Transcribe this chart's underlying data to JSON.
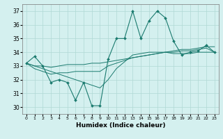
{
  "xlabel": "Humidex (Indice chaleur)",
  "ylabel": "",
  "background_color": "#d4f0ef",
  "grid_color": "#b0d8d4",
  "line_color": "#1a7a6e",
  "xlim": [
    -0.5,
    23.5
  ],
  "ylim": [
    29.5,
    37.5
  ],
  "yticks": [
    30,
    31,
    32,
    33,
    34,
    35,
    36,
    37
  ],
  "xticks": [
    0,
    1,
    2,
    3,
    4,
    5,
    6,
    7,
    8,
    9,
    10,
    11,
    12,
    13,
    14,
    15,
    16,
    17,
    18,
    19,
    20,
    21,
    22,
    23
  ],
  "series": [
    [
      33.2,
      33.7,
      33.0,
      31.8,
      32.0,
      31.8,
      30.5,
      31.8,
      30.1,
      30.1,
      33.5,
      35.0,
      35.0,
      37.0,
      35.0,
      36.3,
      37.0,
      36.5,
      34.8,
      33.8,
      34.0,
      34.1,
      34.5,
      34.0
    ],
    [
      33.2,
      33.0,
      33.0,
      32.9,
      33.0,
      33.1,
      33.1,
      33.1,
      33.2,
      33.2,
      33.3,
      33.4,
      33.5,
      33.6,
      33.7,
      33.8,
      33.9,
      34.0,
      34.1,
      34.2,
      34.2,
      34.3,
      34.4,
      34.4
    ],
    [
      33.2,
      32.8,
      32.6,
      32.4,
      32.5,
      32.5,
      32.6,
      32.6,
      32.6,
      32.6,
      33.0,
      33.2,
      33.4,
      33.6,
      33.7,
      33.8,
      33.9,
      34.0,
      34.0,
      34.1,
      34.1,
      34.2,
      34.3,
      34.0
    ],
    [
      33.2,
      33.0,
      32.8,
      32.6,
      32.4,
      32.2,
      32.0,
      31.8,
      31.6,
      31.4,
      32.0,
      32.8,
      33.3,
      33.8,
      33.9,
      34.0,
      34.0,
      34.0,
      33.9,
      33.9,
      33.9,
      34.0,
      34.0,
      34.0
    ]
  ]
}
